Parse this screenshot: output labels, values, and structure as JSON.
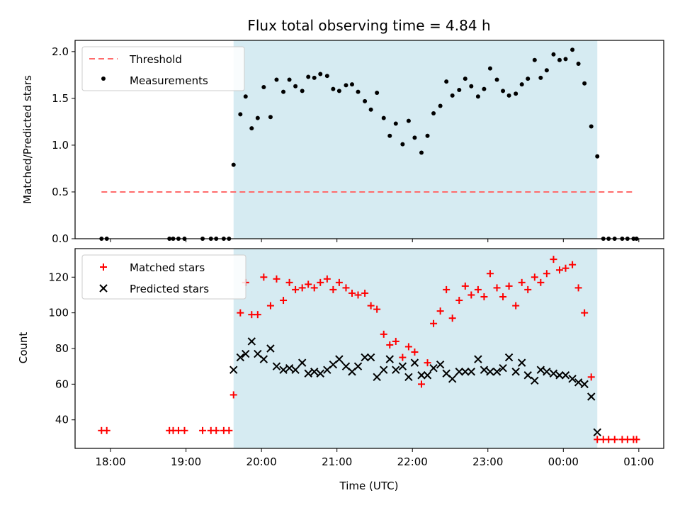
{
  "chart_data": {
    "title": "Flux total observing time = 4.84 h",
    "xlabel": "Time (UTC)",
    "x_ticks": [
      "18:00",
      "19:00",
      "20:00",
      "21:00",
      "22:00",
      "23:00",
      "00:00",
      "01:00"
    ],
    "x_tick_hours": [
      18,
      19,
      20,
      21,
      22,
      23,
      24,
      25
    ],
    "xlim": [
      17.53,
      25.33
    ],
    "observing_window": [
      19.63,
      24.45
    ],
    "observing_window_color": "#add8e6",
    "panels": [
      {
        "type": "scatter",
        "ylabel": "Matched/Predicted stars",
        "ylim": [
          0,
          2.12
        ],
        "yticks": [
          0.0,
          0.5,
          1.0,
          1.5,
          2.0
        ],
        "ytick_labels": [
          "0.0",
          "0.5",
          "1.0",
          "1.5",
          "2.0"
        ],
        "legend": [
          "Threshold",
          "Measurements"
        ],
        "legend_position": "upper left",
        "threshold": {
          "name": "Threshold",
          "y": 0.5,
          "x_range": [
            17.88,
            24.95
          ],
          "color": "#ff6b6b",
          "style": "dashed"
        },
        "measurements": {
          "name": "Measurements",
          "color": "#000000",
          "x": [
            17.88,
            17.95,
            18.78,
            18.83,
            18.9,
            18.98,
            19.22,
            19.33,
            19.4,
            19.5,
            19.57,
            19.63,
            19.72,
            19.79,
            19.87,
            19.95,
            20.03,
            20.12,
            20.2,
            20.29,
            20.37,
            20.45,
            20.54,
            20.62,
            20.7,
            20.78,
            20.87,
            20.95,
            21.03,
            21.12,
            21.2,
            21.28,
            21.37,
            21.45,
            21.53,
            21.62,
            21.7,
            21.78,
            21.87,
            21.95,
            22.03,
            22.12,
            22.2,
            22.28,
            22.37,
            22.45,
            22.53,
            22.62,
            22.7,
            22.78,
            22.87,
            22.95,
            23.03,
            23.12,
            23.2,
            23.28,
            23.37,
            23.45,
            23.53,
            23.62,
            23.7,
            23.78,
            23.87,
            23.95,
            24.03,
            24.12,
            24.2,
            24.28,
            24.37,
            24.45,
            24.53,
            24.6,
            24.68,
            24.78,
            24.85,
            24.93,
            24.97
          ],
          "y": [
            0.0,
            0.0,
            0.0,
            0.0,
            0.0,
            0.0,
            0.0,
            0.0,
            0.0,
            0.0,
            0.0,
            0.79,
            1.33,
            1.52,
            1.18,
            1.29,
            1.62,
            1.3,
            1.7,
            1.57,
            1.7,
            1.63,
            1.58,
            1.73,
            1.72,
            1.76,
            1.74,
            1.6,
            1.58,
            1.64,
            1.65,
            1.57,
            1.47,
            1.38,
            1.56,
            1.29,
            1.1,
            1.23,
            1.01,
            1.26,
            1.08,
            0.92,
            1.1,
            1.34,
            1.42,
            1.68,
            1.53,
            1.59,
            1.71,
            1.63,
            1.52,
            1.6,
            1.82,
            1.7,
            1.58,
            1.53,
            1.55,
            1.65,
            1.71,
            1.91,
            1.72,
            1.8,
            1.97,
            1.91,
            1.92,
            2.02,
            1.87,
            1.66,
            1.2,
            0.88,
            0.0,
            0.0,
            0.0,
            0.0,
            0.0,
            0.0,
            0.0
          ]
        }
      },
      {
        "type": "scatter",
        "ylabel": "Count",
        "ylim": [
          24,
          136
        ],
        "yticks": [
          40,
          60,
          80,
          100,
          120
        ],
        "ytick_labels": [
          "40",
          "60",
          "80",
          "100",
          "120"
        ],
        "legend": [
          "Matched stars",
          "Predicted stars"
        ],
        "legend_position": "upper left",
        "matched": {
          "name": "Matched stars",
          "color": "#ff0000",
          "marker": "+",
          "x": [
            17.88,
            17.95,
            18.78,
            18.83,
            18.9,
            18.98,
            19.22,
            19.33,
            19.4,
            19.5,
            19.57,
            19.63,
            19.72,
            19.79,
            19.87,
            19.95,
            20.03,
            20.12,
            20.2,
            20.29,
            20.37,
            20.45,
            20.54,
            20.62,
            20.7,
            20.78,
            20.87,
            20.95,
            21.03,
            21.12,
            21.2,
            21.28,
            21.37,
            21.45,
            21.53,
            21.62,
            21.7,
            21.78,
            21.87,
            21.95,
            22.03,
            22.12,
            22.2,
            22.28,
            22.37,
            22.45,
            22.53,
            22.62,
            22.7,
            22.78,
            22.87,
            22.95,
            23.03,
            23.12,
            23.2,
            23.28,
            23.37,
            23.45,
            23.53,
            23.62,
            23.7,
            23.78,
            23.87,
            23.95,
            24.03,
            24.12,
            24.2,
            24.28,
            24.37,
            24.45,
            24.53,
            24.6,
            24.68,
            24.78,
            24.85,
            24.93,
            24.97
          ],
          "y": [
            34,
            34,
            34,
            34,
            34,
            34,
            34,
            34,
            34,
            34,
            34,
            54,
            100,
            117,
            99,
            99,
            120,
            104,
            119,
            107,
            117,
            113,
            114,
            116,
            114,
            117,
            119,
            113,
            117,
            114,
            111,
            110,
            111,
            104,
            102,
            88,
            82,
            84,
            75,
            81,
            78,
            60,
            72,
            94,
            101,
            113,
            97,
            107,
            115,
            110,
            113,
            109,
            122,
            114,
            109,
            115,
            104,
            117,
            113,
            120,
            117,
            122,
            130,
            124,
            125,
            127,
            114,
            100,
            64,
            29,
            29,
            29,
            29,
            29,
            29,
            29,
            29
          ]
        },
        "predicted": {
          "name": "Predicted stars",
          "color": "#000000",
          "marker": "x",
          "x": [
            19.63,
            19.72,
            19.79,
            19.87,
            19.95,
            20.03,
            20.12,
            20.2,
            20.29,
            20.37,
            20.45,
            20.54,
            20.62,
            20.7,
            20.78,
            20.87,
            20.95,
            21.03,
            21.12,
            21.2,
            21.28,
            21.37,
            21.45,
            21.53,
            21.62,
            21.7,
            21.78,
            21.87,
            21.95,
            22.03,
            22.12,
            22.2,
            22.28,
            22.37,
            22.45,
            22.53,
            22.62,
            22.7,
            22.78,
            22.87,
            22.95,
            23.03,
            23.12,
            23.2,
            23.28,
            23.37,
            23.45,
            23.53,
            23.62,
            23.7,
            23.78,
            23.87,
            23.95,
            24.03,
            24.12,
            24.2,
            24.28,
            24.37,
            24.45
          ],
          "y": [
            68,
            75,
            77,
            84,
            77,
            74,
            80,
            70,
            68,
            69,
            68,
            72,
            66,
            67,
            66,
            68,
            71,
            74,
            70,
            67,
            70,
            75,
            75,
            64,
            68,
            74,
            68,
            70,
            64,
            72,
            65,
            65,
            69,
            71,
            66,
            63,
            67,
            67,
            67,
            74,
            68,
            67,
            67,
            69,
            75,
            67,
            72,
            65,
            62,
            68,
            67,
            66,
            65,
            65,
            63,
            61,
            60,
            53,
            33
          ]
        }
      }
    ]
  }
}
